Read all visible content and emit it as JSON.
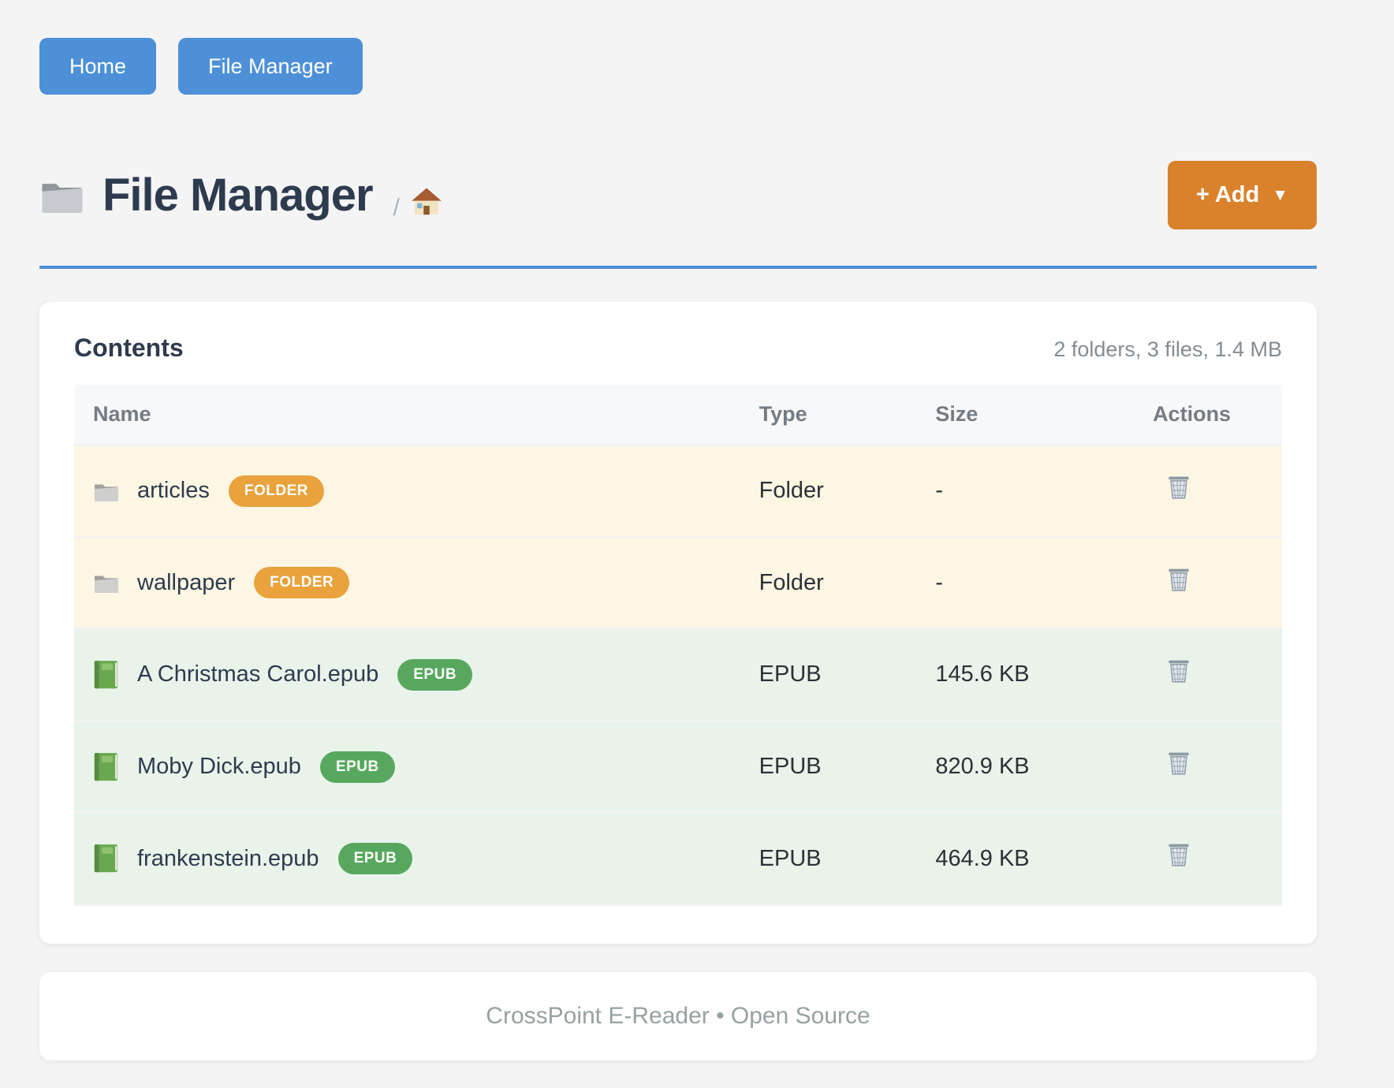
{
  "nav": {
    "buttons": [
      {
        "label": "Home"
      },
      {
        "label": "File Manager"
      }
    ]
  },
  "header": {
    "title": "File Manager",
    "title_icon": "folder-icon",
    "breadcrumb_separator": "/",
    "breadcrumb_home_icon": "house-icon",
    "add_button_label": "+ Add",
    "add_button_caret": "▼"
  },
  "contents": {
    "title": "Contents",
    "summary": "2 folders, 3 files, 1.4 MB",
    "columns": [
      "Name",
      "Type",
      "Size",
      "Actions"
    ],
    "delete_icon": "trash-icon",
    "rows": [
      {
        "icon": "folder-icon",
        "name": "articles",
        "badge": "FOLDER",
        "type": "Folder",
        "size": "-",
        "kind": "folder"
      },
      {
        "icon": "folder-icon",
        "name": "wallpaper",
        "badge": "FOLDER",
        "type": "Folder",
        "size": "-",
        "kind": "folder"
      },
      {
        "icon": "book-icon",
        "name": "A Christmas Carol.epub",
        "badge": "EPUB",
        "type": "EPUB",
        "size": "145.6 KB",
        "kind": "file"
      },
      {
        "icon": "book-icon",
        "name": "Moby Dick.epub",
        "badge": "EPUB",
        "type": "EPUB",
        "size": "820.9 KB",
        "kind": "file"
      },
      {
        "icon": "book-icon",
        "name": "frankenstein.epub",
        "badge": "EPUB",
        "type": "EPUB",
        "size": "464.9 KB",
        "kind": "file"
      }
    ]
  },
  "footer": {
    "text": "CrossPoint E-Reader • Open Source"
  },
  "colors": {
    "primary_blue": "#4d90d8",
    "add_orange": "#d9822b",
    "badge_orange": "#e9a23c",
    "badge_green": "#57a85e",
    "folder_row_bg": "#fdf6e3",
    "file_row_bg": "#e9f3ea",
    "heading_navy": "#2e3b4e",
    "page_bg": "#f4f4f5"
  }
}
